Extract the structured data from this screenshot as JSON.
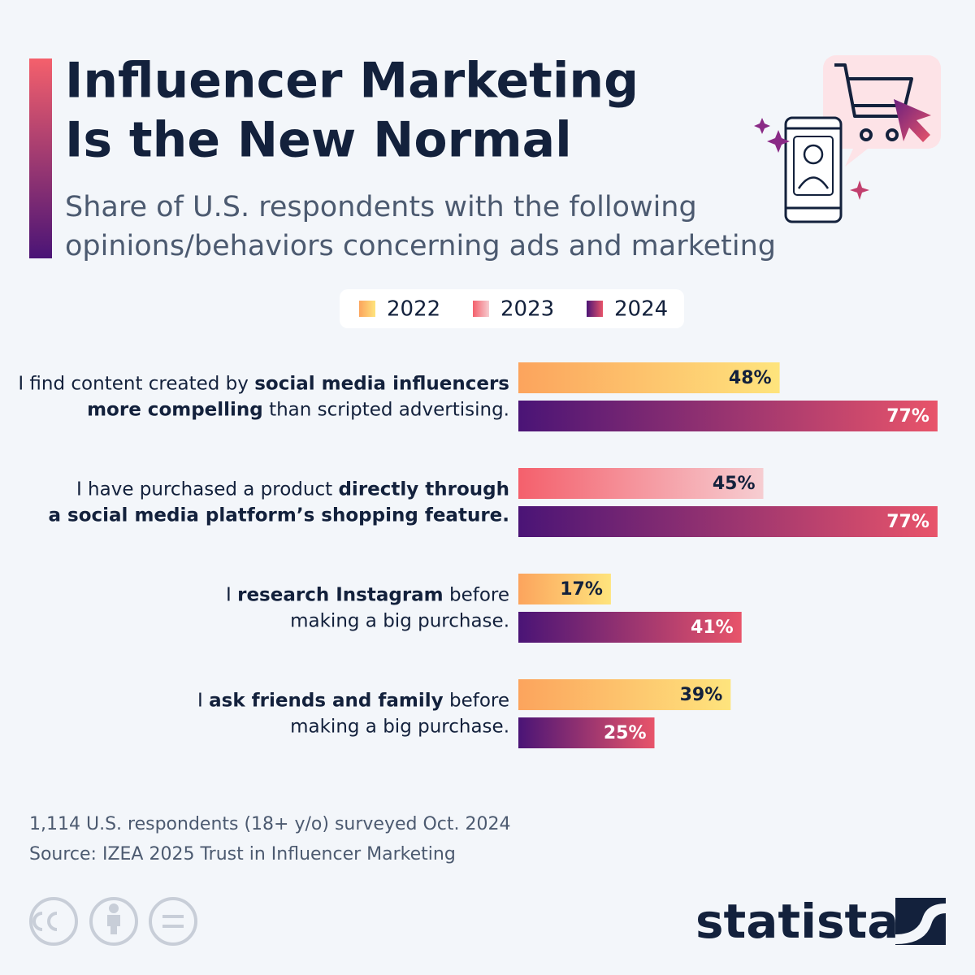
{
  "title_lines": [
    "Influencer Marketing",
    "Is the New Normal"
  ],
  "subtitle_lines": [
    "Share of U.S. respondents with the following",
    "opinions/behaviors concerning ads and marketing"
  ],
  "chart_data": {
    "type": "bar",
    "orientation": "horizontal",
    "categories": [
      {
        "lines": [
          [
            {
              "text": "I find content created by "
            },
            {
              "text": "social media influencers",
              "bold": true
            }
          ],
          [
            {
              "text": "more compelling",
              "bold": true
            },
            {
              "text": " than scripted advertising."
            }
          ]
        ]
      },
      {
        "lines": [
          [
            {
              "text": "I have purchased a product "
            },
            {
              "text": "directly through",
              "bold": true
            }
          ],
          [
            {
              "text": "a social media platform’s shopping feature.",
              "bold": true
            }
          ]
        ]
      },
      {
        "lines": [
          [
            {
              "text": "I "
            },
            {
              "text": "research Instagram",
              "bold": true
            },
            {
              "text": " before"
            }
          ],
          [
            {
              "text": "making a big purchase."
            }
          ]
        ]
      },
      {
        "lines": [
          [
            {
              "text": "I "
            },
            {
              "text": "ask friends and family",
              "bold": true
            },
            {
              "text": " before"
            }
          ],
          [
            {
              "text": "making a big purchase."
            }
          ]
        ]
      }
    ],
    "series": [
      {
        "name": "2022",
        "gradient": [
          "#fca45d",
          "#fee47d"
        ],
        "label_color": "#13213c",
        "values": [
          48,
          null,
          17,
          39
        ],
        "value_labels": [
          "48%",
          null,
          "17%",
          "39%"
        ]
      },
      {
        "name": "2023",
        "gradient": [
          "#f4606c",
          "#f6cdd1"
        ],
        "label_color": "#13213c",
        "values": [
          null,
          45,
          null,
          null
        ],
        "value_labels": [
          null,
          "45%",
          null,
          null
        ]
      },
      {
        "name": "2024",
        "gradient": [
          "#4a1476",
          "#e8546a"
        ],
        "label_color": "#ffffff",
        "values": [
          77,
          77,
          41,
          25
        ],
        "value_labels": [
          "77%",
          "77%",
          "41%",
          "25%"
        ]
      }
    ]
  },
  "notes": [
    "1,114 U.S. respondents (18+ y/o) surveyed Oct. 2024",
    "Source: IZEA 2025 Trust in Influencer Marketing"
  ],
  "brand": "statista"
}
